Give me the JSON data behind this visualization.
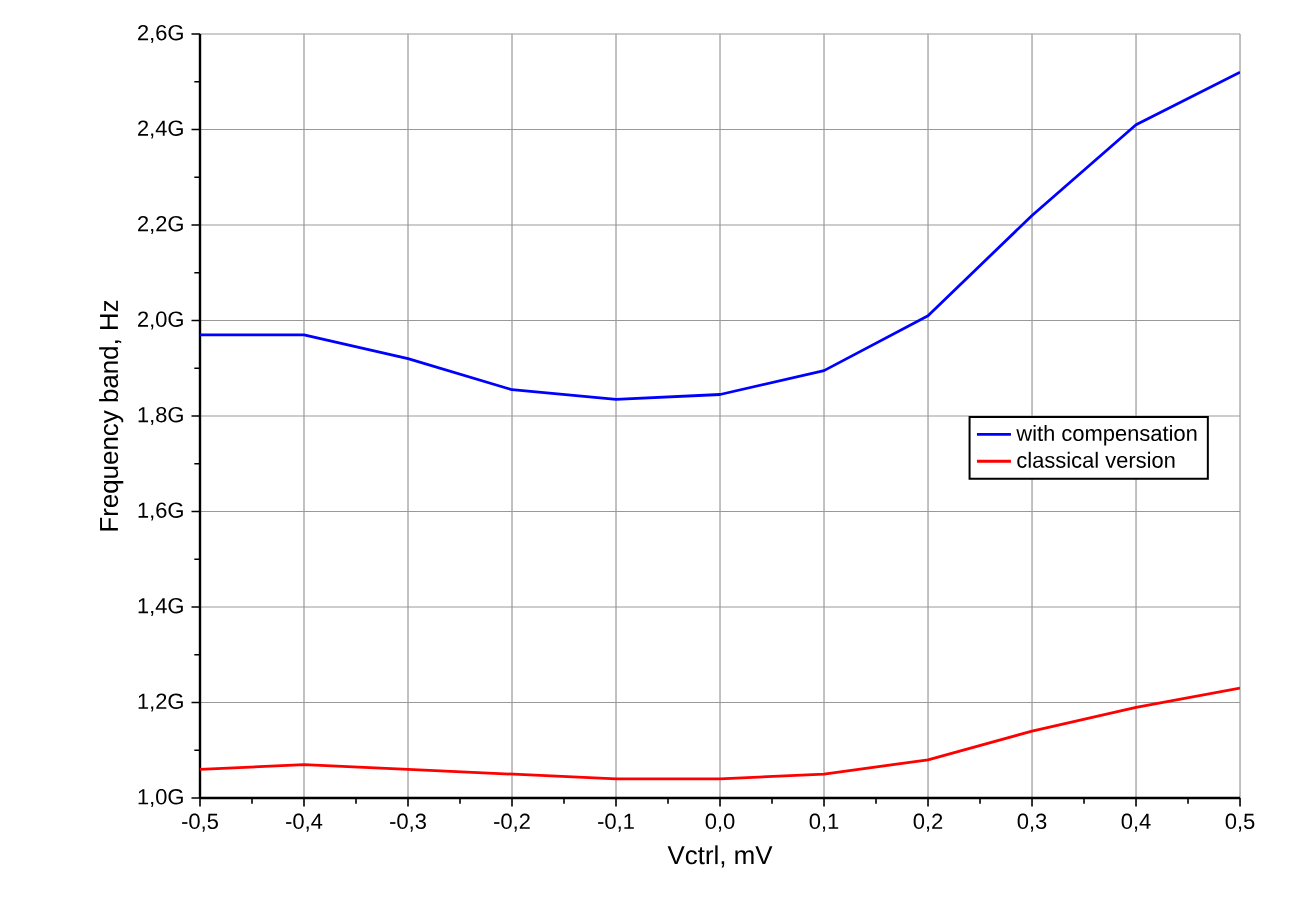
{
  "chart_data": {
    "type": "line",
    "xlabel": "Vctrl, mV",
    "ylabel": "Frequency band, Hz",
    "x": [
      -0.5,
      -0.4,
      -0.3,
      -0.2,
      -0.1,
      0.0,
      0.1,
      0.2,
      0.3,
      0.4,
      0.5
    ],
    "series": [
      {
        "name": "with compensation",
        "color": "#0000ff",
        "values": [
          1.97,
          1.97,
          1.92,
          1.855,
          1.835,
          1.845,
          1.895,
          2.01,
          2.22,
          2.41,
          2.52
        ]
      },
      {
        "name": "classical version",
        "color": "#ff0000",
        "values": [
          1.06,
          1.07,
          1.06,
          1.05,
          1.04,
          1.04,
          1.05,
          1.08,
          1.14,
          1.19,
          1.23
        ]
      }
    ],
    "xlim": [
      -0.5,
      0.5
    ],
    "ylim": [
      1.0,
      2.6
    ],
    "xticks": [
      {
        "value": -0.5,
        "label": "-0,5"
      },
      {
        "value": -0.4,
        "label": "-0,4"
      },
      {
        "value": -0.3,
        "label": "-0,3"
      },
      {
        "value": -0.2,
        "label": "-0,2"
      },
      {
        "value": -0.1,
        "label": "-0,1"
      },
      {
        "value": 0.0,
        "label": "0,0"
      },
      {
        "value": 0.1,
        "label": "0,1"
      },
      {
        "value": 0.2,
        "label": "0,2"
      },
      {
        "value": 0.3,
        "label": "0,3"
      },
      {
        "value": 0.4,
        "label": "0,4"
      },
      {
        "value": 0.5,
        "label": "0,5"
      }
    ],
    "yticks": [
      {
        "value": 1.0,
        "label": "1,0G"
      },
      {
        "value": 1.2,
        "label": "1,2G"
      },
      {
        "value": 1.4,
        "label": "1,4G"
      },
      {
        "value": 1.6,
        "label": "1,6G"
      },
      {
        "value": 1.8,
        "label": "1,8G"
      },
      {
        "value": 2.0,
        "label": "2,0G"
      },
      {
        "value": 2.2,
        "label": "2,2G"
      },
      {
        "value": 2.4,
        "label": "2,4G"
      },
      {
        "value": 2.6,
        "label": "2,6G"
      }
    ],
    "grid": true,
    "legend": "right",
    "marker": "none",
    "line_style": "solid"
  }
}
